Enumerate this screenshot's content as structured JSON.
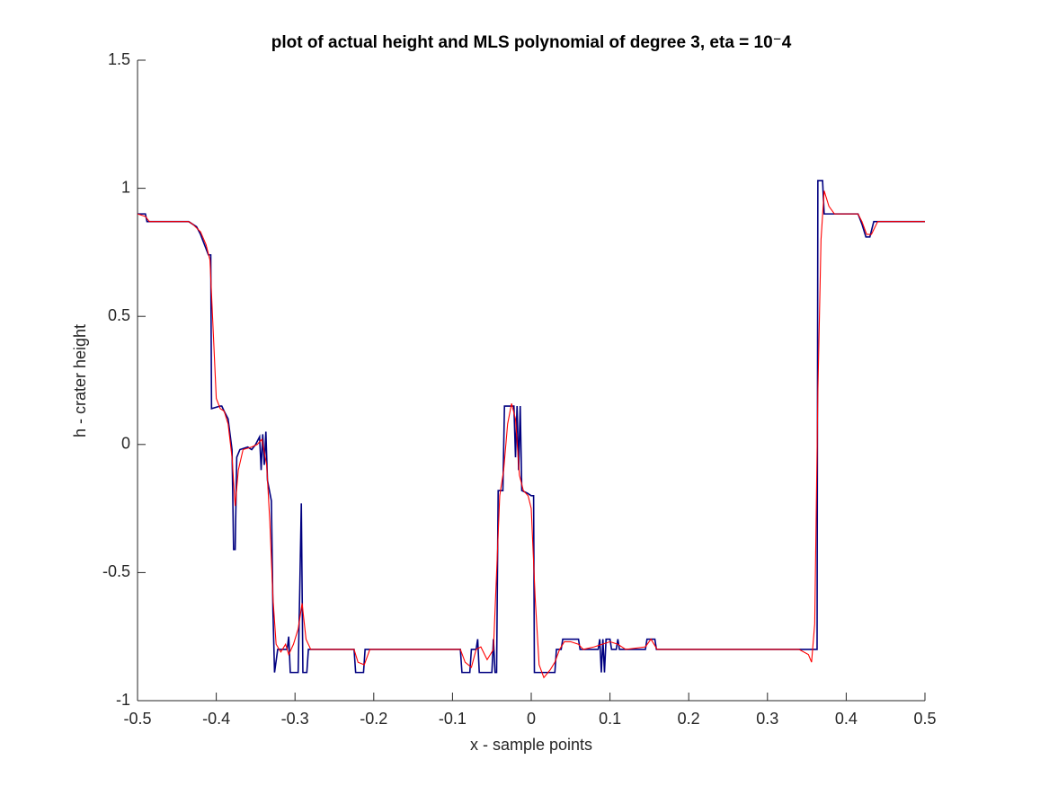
{
  "chart_data": {
    "type": "line",
    "title": "plot of actual height and MLS polynomial of degree 3, eta = 10⁻4",
    "x_label": "x - sample points",
    "y_label": "h - crater height",
    "xlim": [
      -0.5,
      0.5
    ],
    "ylim": [
      -1,
      1.5
    ],
    "xticks": [
      -0.5,
      -0.4,
      -0.3,
      -0.2,
      -0.1,
      0,
      0.1,
      0.2,
      0.3,
      0.4,
      0.5
    ],
    "yticks": [
      -1,
      -0.5,
      0,
      0.5,
      1,
      1.5
    ],
    "grid": false,
    "series": [
      {
        "name": "actual height",
        "color": "#000080",
        "x": [
          -0.5,
          -0.49,
          -0.488,
          -0.435,
          -0.43,
          -0.425,
          -0.42,
          -0.415,
          -0.41,
          -0.407,
          -0.406,
          -0.395,
          -0.393,
          -0.39,
          -0.385,
          -0.38,
          -0.378,
          -0.376,
          -0.374,
          -0.37,
          -0.36,
          -0.355,
          -0.35,
          -0.345,
          -0.343,
          -0.341,
          -0.339,
          -0.337,
          -0.335,
          -0.33,
          -0.328,
          -0.326,
          -0.322,
          -0.31,
          -0.308,
          -0.306,
          -0.296,
          -0.294,
          -0.292,
          -0.29,
          -0.285,
          -0.283,
          -0.225,
          -0.223,
          -0.213,
          -0.211,
          -0.09,
          -0.088,
          -0.078,
          -0.076,
          -0.07,
          -0.068,
          -0.066,
          -0.05,
          -0.048,
          -0.046,
          -0.044,
          -0.042,
          -0.036,
          -0.034,
          -0.022,
          -0.02,
          -0.018,
          -0.016,
          -0.014,
          -0.012,
          -0.005,
          0,
          0.003,
          0.004,
          0.03,
          0.032,
          0.038,
          0.04,
          0.06,
          0.062,
          0.085,
          0.087,
          0.089,
          0.091,
          0.093,
          0.095,
          0.1,
          0.102,
          0.108,
          0.11,
          0.112,
          0.145,
          0.147,
          0.157,
          0.159,
          0.363,
          0.364,
          0.37,
          0.372,
          0.415,
          0.42,
          0.425,
          0.43,
          0.435,
          0.5
        ],
        "values": [
          0.9,
          0.9,
          0.87,
          0.87,
          0.86,
          0.85,
          0.82,
          0.78,
          0.74,
          0.74,
          0.14,
          0.15,
          0.15,
          0.13,
          0.1,
          -0.02,
          -0.41,
          -0.41,
          -0.05,
          -0.02,
          -0.01,
          -0.02,
          0.0,
          0.03,
          -0.1,
          0.04,
          -0.08,
          0.05,
          -0.14,
          -0.22,
          -0.65,
          -0.89,
          -0.8,
          -0.8,
          -0.75,
          -0.89,
          -0.89,
          -0.57,
          -0.23,
          -0.89,
          -0.89,
          -0.8,
          -0.8,
          -0.89,
          -0.89,
          -0.8,
          -0.8,
          -0.89,
          -0.89,
          -0.8,
          -0.8,
          -0.76,
          -0.89,
          -0.89,
          -0.76,
          -0.89,
          -0.89,
          -0.18,
          -0.18,
          0.15,
          0.15,
          -0.05,
          0.15,
          -0.1,
          0.15,
          -0.18,
          -0.19,
          -0.2,
          -0.2,
          -0.89,
          -0.89,
          -0.8,
          -0.8,
          -0.76,
          -0.76,
          -0.8,
          -0.8,
          -0.76,
          -0.89,
          -0.76,
          -0.89,
          -0.76,
          -0.76,
          -0.8,
          -0.8,
          -0.76,
          -0.8,
          -0.8,
          -0.76,
          -0.76,
          -0.8,
          -0.8,
          1.03,
          1.03,
          0.9,
          0.9,
          0.86,
          0.81,
          0.81,
          0.87,
          0.87
        ]
      },
      {
        "name": "MLS polynomial",
        "color": "#ff0000",
        "x": [
          -0.5,
          -0.49,
          -0.485,
          -0.435,
          -0.43,
          -0.42,
          -0.413,
          -0.408,
          -0.404,
          -0.4,
          -0.395,
          -0.39,
          -0.385,
          -0.38,
          -0.376,
          -0.372,
          -0.366,
          -0.355,
          -0.348,
          -0.342,
          -0.336,
          -0.332,
          -0.328,
          -0.324,
          -0.318,
          -0.312,
          -0.308,
          -0.302,
          -0.296,
          -0.291,
          -0.286,
          -0.28,
          -0.225,
          -0.22,
          -0.212,
          -0.205,
          -0.09,
          -0.084,
          -0.076,
          -0.07,
          -0.064,
          -0.056,
          -0.048,
          -0.044,
          -0.04,
          -0.035,
          -0.03,
          -0.025,
          -0.02,
          -0.015,
          -0.01,
          -0.004,
          0,
          0.005,
          0.01,
          0.016,
          0.024,
          0.03,
          0.036,
          0.042,
          0.05,
          0.06,
          0.066,
          0.08,
          0.09,
          0.1,
          0.11,
          0.12,
          0.145,
          0.152,
          0.16,
          0.34,
          0.352,
          0.356,
          0.36,
          0.364,
          0.368,
          0.372,
          0.378,
          0.385,
          0.415,
          0.42,
          0.426,
          0.432,
          0.44,
          0.5
        ],
        "values": [
          0.9,
          0.89,
          0.87,
          0.87,
          0.86,
          0.83,
          0.78,
          0.72,
          0.45,
          0.18,
          0.14,
          0.13,
          0.08,
          -0.05,
          -0.24,
          -0.1,
          -0.02,
          -0.01,
          0.0,
          0.02,
          -0.08,
          -0.3,
          -0.6,
          -0.78,
          -0.81,
          -0.78,
          -0.82,
          -0.78,
          -0.72,
          -0.62,
          -0.76,
          -0.8,
          -0.8,
          -0.85,
          -0.86,
          -0.8,
          -0.8,
          -0.85,
          -0.87,
          -0.8,
          -0.79,
          -0.84,
          -0.8,
          -0.5,
          -0.2,
          -0.1,
          0.08,
          0.16,
          0.1,
          -0.12,
          -0.18,
          -0.2,
          -0.25,
          -0.6,
          -0.86,
          -0.91,
          -0.88,
          -0.85,
          -0.8,
          -0.77,
          -0.77,
          -0.78,
          -0.8,
          -0.79,
          -0.78,
          -0.77,
          -0.78,
          -0.8,
          -0.79,
          -0.76,
          -0.8,
          -0.8,
          -0.82,
          -0.85,
          -0.7,
          0.2,
          0.8,
          0.99,
          0.93,
          0.9,
          0.9,
          0.87,
          0.82,
          0.82,
          0.87,
          0.87
        ]
      }
    ]
  }
}
